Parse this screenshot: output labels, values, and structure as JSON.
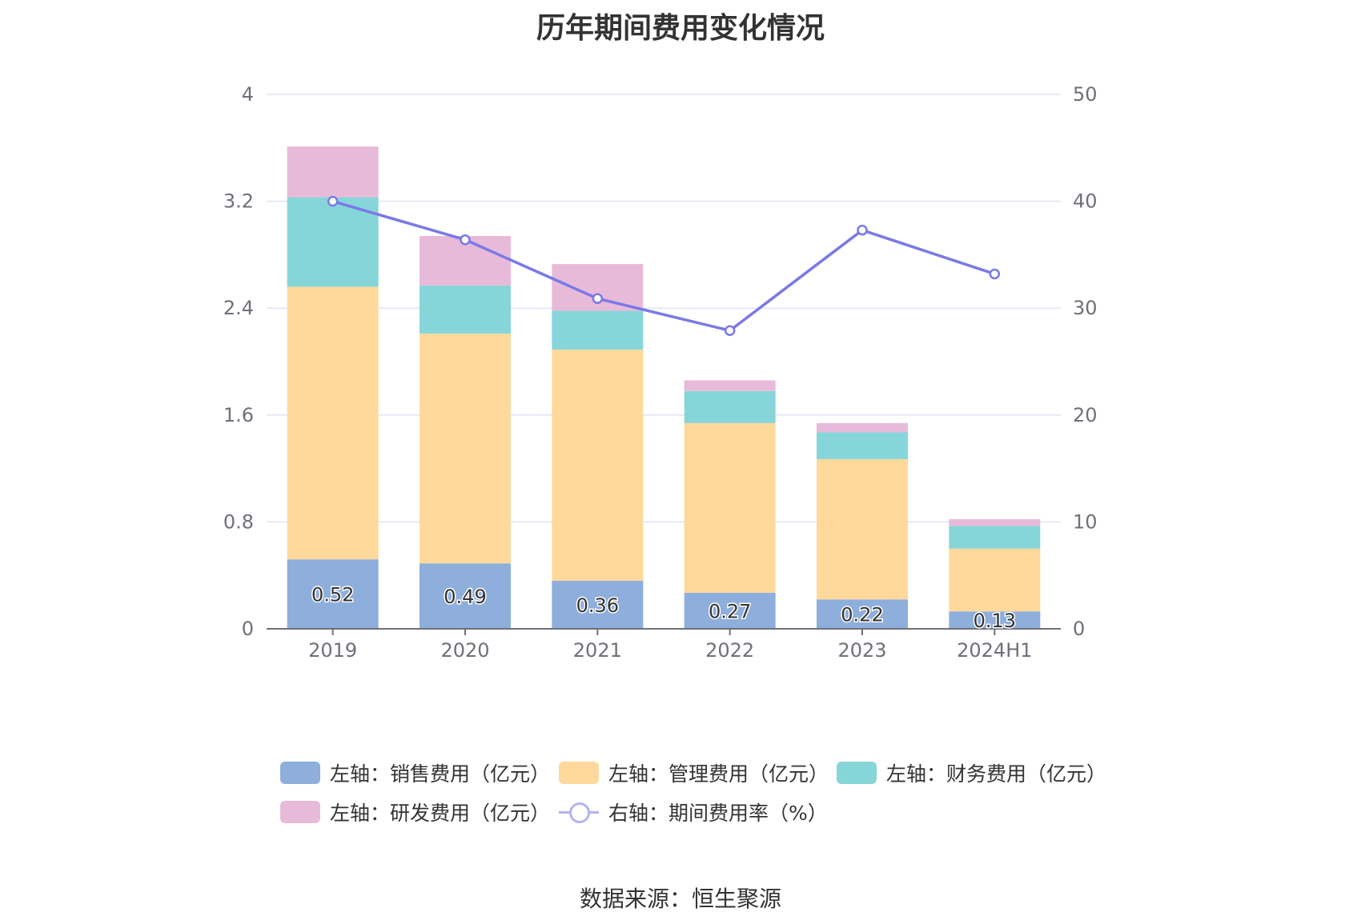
{
  "title": "历年期间费用变化情况",
  "source": "数据来源：恒生聚源",
  "legend": [
    {
      "label": "左轴：销售费用（亿元）",
      "color": "#8eaedc",
      "type": "bar"
    },
    {
      "label": "左轴：管理费用（亿元）",
      "color": "#ffd99b",
      "type": "bar"
    },
    {
      "label": "左轴：财务费用（亿元）",
      "color": "#86d6d9",
      "type": "bar"
    },
    {
      "label": "左轴：研发费用（亿元）",
      "color": "#e8bada",
      "type": "bar"
    },
    {
      "label": "右轴：期间费用率（%）",
      "color": "#7a79e6",
      "type": "line"
    }
  ],
  "chart_data": {
    "type": "bar",
    "stacked": true,
    "title": "历年期间费用变化情况",
    "categories": [
      "2019",
      "2020",
      "2021",
      "2022",
      "2023",
      "2024H1"
    ],
    "series": [
      {
        "name": "左轴：销售费用（亿元）",
        "axis": "left",
        "color": "#8eaedc",
        "values": [
          0.52,
          0.49,
          0.36,
          0.27,
          0.22,
          0.13
        ],
        "labels": [
          "0.52",
          "0.49",
          "0.36",
          "0.27",
          "0.22",
          "0.13"
        ]
      },
      {
        "name": "左轴：管理费用（亿元）",
        "axis": "left",
        "color": "#ffd99b",
        "values": [
          2.04,
          1.72,
          1.73,
          1.27,
          1.05,
          0.47
        ]
      },
      {
        "name": "左轴：财务费用（亿元）",
        "axis": "left",
        "color": "#86d6d9",
        "values": [
          0.67,
          0.36,
          0.29,
          0.24,
          0.2,
          0.17
        ]
      },
      {
        "name": "左轴：研发费用（亿元）",
        "axis": "left",
        "color": "#e8bada",
        "values": [
          0.38,
          0.37,
          0.35,
          0.08,
          0.07,
          0.05
        ]
      },
      {
        "name": "右轴：期间费用率（%）",
        "axis": "right",
        "type": "line",
        "color": "#7a79e6",
        "values": [
          40.0,
          36.4,
          30.9,
          27.9,
          37.3,
          33.2
        ]
      }
    ],
    "y_left": {
      "min": 0,
      "max": 4,
      "ticks": [
        "0",
        "0.8",
        "1.6",
        "2.4",
        "3.2",
        "4"
      ]
    },
    "y_right": {
      "min": 0,
      "max": 50,
      "ticks": [
        "0",
        "10",
        "20",
        "30",
        "40",
        "50"
      ]
    },
    "grid": true,
    "legend_position": "bottom"
  }
}
